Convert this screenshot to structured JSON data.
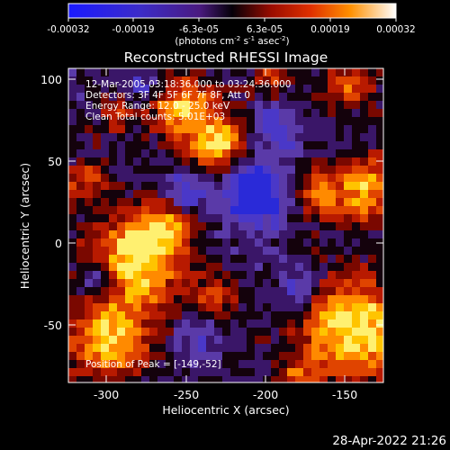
{
  "colorbar": {
    "ticks": [
      "-0.00032",
      "-0.00019",
      "-6.3e-05",
      "6.3e-05",
      "0.00019",
      "0.00032"
    ],
    "unit": "(photons cm",
    "unit_sup1": "-2",
    "unit_mid": " s",
    "unit_sup2": "-1",
    "unit_end": " asec",
    "unit_sup3": "-2",
    "unit_close": ")"
  },
  "title": "Reconstructed RHESSI Image",
  "info": {
    "line1": "12-Mar-2005 03:18:36.000 to 03:24:36.000",
    "line2": "Detectors: 3F 4F 5F 6F 7F 8F, Att 0",
    "line3": "Energy Range: 12.0 - 25.0 keV",
    "line4": "Clean     Total counts: 5.01E+03",
    "peak": "Position of Peak = [-149,-52]"
  },
  "axes": {
    "xlabel": "Heliocentric X (arcsec)",
    "ylabel": "Heliocentric Y (arcsec)",
    "xticks": [
      "-300",
      "-250",
      "-200",
      "-150"
    ],
    "yticks": [
      "100",
      "50",
      "0",
      "-50"
    ]
  },
  "footer": {
    "timestamp": "28-Apr-2022 21:26"
  }
}
